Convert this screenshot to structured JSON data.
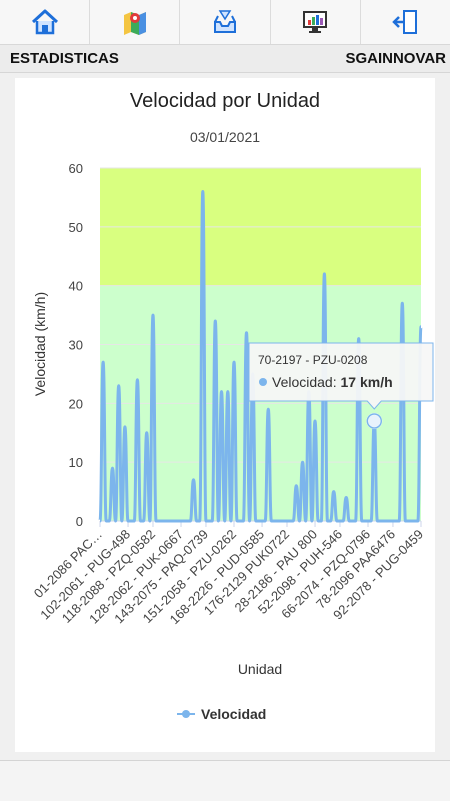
{
  "toolbar": {
    "buttons": [
      {
        "name": "home-icon"
      },
      {
        "name": "map-icon"
      },
      {
        "name": "inbox-icon"
      },
      {
        "name": "monitor-chart-icon"
      },
      {
        "name": "logout-icon"
      }
    ]
  },
  "header": {
    "left": "ESTADISTICAS",
    "right": "SGAINNOVAR"
  },
  "chart_data": {
    "type": "line",
    "title": "Velocidad por Unidad",
    "subtitle": "03/01/2021",
    "xlabel": "Unidad",
    "ylabel": "Velocidad (km/h)",
    "ylim": [
      0,
      60
    ],
    "yticks": [
      0,
      10,
      20,
      30,
      40,
      50,
      60
    ],
    "x_tick_labels": [
      "01-2086 PAC…",
      "102-2061 - PUG-498",
      "118-2088 - PZQ-0582",
      "128-2062 - PUK-0667",
      "143-2075 - PAQ-0739",
      "151-2058 - PZU-0262",
      "168-2226 - PUD-0585",
      "176-2129 PUK0722",
      "28-2186 - PAU 800",
      "52-2098 - PUH-546",
      "66-2074 - PZQ-0796",
      "78-2096 PAA6476",
      "92-2078 - PUG-0459"
    ],
    "bands": [
      {
        "from": 0,
        "to": 40,
        "color": "#ccffcc"
      },
      {
        "from": 40,
        "to": 60,
        "color": "#d9ff80"
      }
    ],
    "series": [
      {
        "name": "Velocidad",
        "color": "#7cb5ec",
        "values": [
          0,
          27,
          0,
          0,
          9,
          0,
          23,
          0,
          16,
          0,
          0,
          0,
          24,
          0,
          0,
          15,
          0,
          35,
          0,
          0,
          0,
          0,
          0,
          0,
          0,
          0,
          0,
          0,
          0,
          0,
          7,
          0,
          0,
          56,
          0,
          0,
          0,
          34,
          0,
          22,
          0,
          22,
          0,
          27,
          0,
          0,
          0,
          32,
          0,
          25,
          0,
          0,
          0,
          0,
          19,
          0,
          0,
          0,
          0,
          0,
          0,
          0,
          0,
          6,
          0,
          10,
          0,
          22,
          0,
          17,
          0,
          0,
          42,
          0,
          0,
          5,
          0,
          0,
          0,
          4,
          0,
          0,
          0,
          31,
          0,
          0,
          0,
          0,
          17,
          0,
          0,
          0,
          0,
          0,
          0,
          0,
          0,
          37,
          0,
          0,
          0,
          0,
          0,
          33
        ]
      }
    ],
    "tooltip": {
      "unit_label": "70-2197 - PZU-0208",
      "series_label": "Velocidad:",
      "value_text": "17 km/h",
      "point_index": 88
    },
    "legend": {
      "label": "Velocidad",
      "placement": "bottom-center"
    }
  }
}
